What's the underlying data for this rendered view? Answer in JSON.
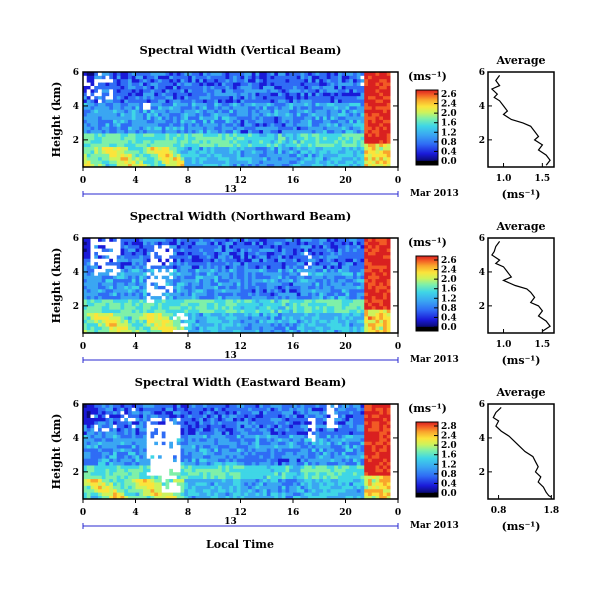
{
  "figure": {
    "xlabel": "Local Time",
    "date_label": "Mar 2013",
    "day_label": "13",
    "colorbar_unit": "(ms⁻¹)",
    "avg_title": "Average",
    "avg_xlabel": "(ms⁻¹)"
  },
  "colors": {
    "colormap": [
      "#0b0b7a",
      "#1a1ad8",
      "#2f6cf5",
      "#3aa6f2",
      "#3fd6e6",
      "#7ff0a8",
      "#cdf35c",
      "#fbe43b",
      "#f9a52c",
      "#f25a25",
      "#d92020"
    ],
    "missing": "#ffffff",
    "blueline": "#2a2ad0"
  },
  "chart_data": [
    {
      "type": "heatmap",
      "title": "Spectral Width (Vertical Beam)",
      "ylabel": "Height (km)",
      "x_range": [
        0,
        24
      ],
      "x_ticks": [
        "0",
        "4",
        "8",
        "12",
        "16",
        "20",
        "0"
      ],
      "y_range": [
        0.4,
        6
      ],
      "y_ticks": [
        "6",
        "4",
        "2"
      ],
      "colorbar_ticks": [
        "2.6",
        "2.4",
        "2.0",
        "1.6",
        "1.2",
        "0.8",
        "0.4",
        "0.0"
      ],
      "colorbar_range": [
        0,
        2.8
      ]
    },
    {
      "type": "line",
      "title": "Average",
      "xlabel": "(ms⁻¹)",
      "ylabel": "",
      "x_ticks": [
        "1.0",
        "1.5"
      ],
      "xlim": [
        0.8,
        1.65
      ],
      "y_ticks": [
        "6",
        "4",
        "2"
      ],
      "ylim": [
        0.4,
        6
      ],
      "series": [
        {
          "x": [
            0.95,
            0.9,
            0.95,
            0.85,
            0.92,
            0.88,
            0.95,
            1.0,
            1.05,
            1.0,
            1.1,
            1.25,
            1.35,
            1.4,
            1.45,
            1.4,
            1.5,
            1.45,
            1.55,
            1.6,
            1.55
          ],
          "y": [
            5.8,
            5.5,
            5.2,
            5.0,
            4.7,
            4.5,
            4.3,
            4.0,
            3.7,
            3.5,
            3.2,
            3.0,
            2.8,
            2.5,
            2.2,
            2.0,
            1.7,
            1.4,
            1.1,
            0.8,
            0.5
          ]
        }
      ]
    },
    {
      "type": "heatmap",
      "title": "Spectral Width (Northward Beam)",
      "ylabel": "Height (km)",
      "x_range": [
        0,
        24
      ],
      "x_ticks": [
        "0",
        "4",
        "8",
        "12",
        "16",
        "20",
        "0"
      ],
      "y_range": [
        0.4,
        6
      ],
      "y_ticks": [
        "6",
        "4",
        "2"
      ],
      "colorbar_ticks": [
        "2.6",
        "2.4",
        "2.0",
        "1.6",
        "1.2",
        "0.8",
        "0.4",
        "0.0"
      ],
      "colorbar_range": [
        0,
        2.8
      ]
    },
    {
      "type": "line",
      "title": "Average",
      "xlabel": "(ms⁻¹)",
      "ylabel": "",
      "x_ticks": [
        "1.0",
        "1.5"
      ],
      "xlim": [
        0.8,
        1.65
      ],
      "y_ticks": [
        "6",
        "4",
        "2"
      ],
      "ylim": [
        0.4,
        6
      ],
      "series": [
        {
          "x": [
            0.95,
            0.9,
            0.88,
            0.85,
            0.95,
            0.9,
            1.0,
            1.05,
            1.1,
            1.0,
            1.15,
            1.3,
            1.35,
            1.4,
            1.35,
            1.45,
            1.5,
            1.45,
            1.55,
            1.6,
            1.5
          ],
          "y": [
            5.8,
            5.5,
            5.2,
            5.0,
            4.7,
            4.5,
            4.3,
            4.0,
            3.7,
            3.5,
            3.2,
            3.0,
            2.8,
            2.5,
            2.2,
            2.0,
            1.7,
            1.4,
            1.1,
            0.8,
            0.5
          ]
        }
      ]
    },
    {
      "type": "heatmap",
      "title": "Spectral Width (Eastward Beam)",
      "ylabel": "Height (km)",
      "x_range": [
        0,
        24
      ],
      "x_ticks": [
        "0",
        "4",
        "8",
        "12",
        "16",
        "20",
        "0"
      ],
      "y_range": [
        0.4,
        6
      ],
      "y_ticks": [
        "6",
        "4",
        "2"
      ],
      "colorbar_ticks": [
        "2.8",
        "2.4",
        "2.0",
        "1.6",
        "1.2",
        "0.8",
        "0.4",
        "0.0"
      ],
      "colorbar_range": [
        0,
        2.8
      ]
    },
    {
      "type": "line",
      "title": "Average",
      "xlabel": "(ms⁻¹)",
      "ylabel": "",
      "x_ticks": [
        "0.8",
        "1.8"
      ],
      "xlim": [
        0.6,
        1.85
      ],
      "y_ticks": [
        "6",
        "4",
        "2"
      ],
      "ylim": [
        0.4,
        6
      ],
      "series": [
        {
          "x": [
            0.85,
            0.75,
            0.7,
            0.8,
            0.75,
            0.85,
            1.0,
            1.1,
            1.2,
            1.3,
            1.45,
            1.5,
            1.55,
            1.5,
            1.6,
            1.55,
            1.65,
            1.7,
            1.75,
            1.8
          ],
          "y": [
            5.8,
            5.5,
            5.2,
            5.0,
            4.7,
            4.4,
            4.1,
            3.8,
            3.5,
            3.2,
            2.9,
            2.6,
            2.3,
            2.0,
            1.7,
            1.4,
            1.1,
            0.8,
            0.6,
            0.5
          ]
        }
      ]
    }
  ]
}
